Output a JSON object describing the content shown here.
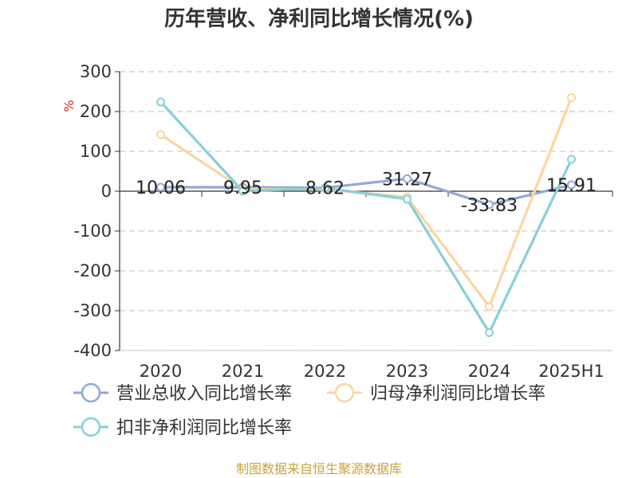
{
  "chart_data": {
    "type": "line",
    "title": "历年营收、净利同比增长情况(%)",
    "unit": "%",
    "categories": [
      "2020",
      "2021",
      "2022",
      "2023",
      "2024",
      "2025H1"
    ],
    "ylim": [
      -400,
      300
    ],
    "yticks": [
      300,
      200,
      100,
      0,
      -100,
      -200,
      -300,
      -400
    ],
    "series": [
      {
        "name": "营业总收入同比增长率",
        "color": "#8fa9d6",
        "values": [
          10.06,
          9.95,
          8.62,
          31.27,
          -33.83,
          15.91
        ],
        "data_labels": [
          "10.06",
          "9.95",
          "8.62",
          "31.27",
          "-33.83",
          "15.91"
        ]
      },
      {
        "name": "归母净利润同比增长率",
        "color": "#f8d79e",
        "values": [
          142,
          5,
          5,
          -15,
          -290,
          235
        ]
      },
      {
        "name": "扣非净利润同比增长率",
        "color": "#86d0d8",
        "values": [
          224,
          0,
          8,
          -20,
          -355,
          80
        ]
      }
    ],
    "grid": true,
    "legend_position": "bottom"
  },
  "source": "制图数据来自恒生聚源数据库"
}
